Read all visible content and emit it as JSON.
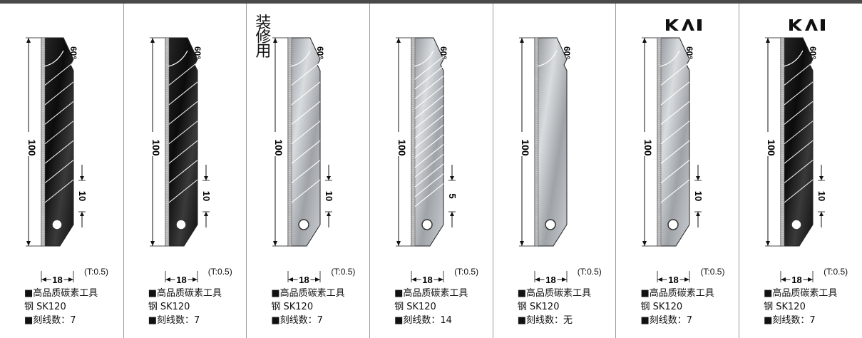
{
  "panels": [
    {
      "name": "black-7",
      "style": "black",
      "lines": 7,
      "interval": "10",
      "tag": "",
      "logo": false,
      "desc1": "■高品质碳素工具",
      "desc2": "钢 SK120",
      "desc3": "■刻线数：7"
    },
    {
      "name": "black-7b",
      "style": "black",
      "lines": 7,
      "interval": "10",
      "tag": "",
      "logo": false,
      "desc1": "■高品质碳素工具",
      "desc2": "钢 SK120",
      "desc3": "■刻线数：7"
    },
    {
      "name": "silver-deco",
      "style": "silver",
      "lines": 7,
      "interval": "10",
      "tag": "装修用",
      "logo": false,
      "desc1": "■高品质碳素工具",
      "desc2": "钢 SK120",
      "desc3": "■刻线数：7"
    },
    {
      "name": "silver-14",
      "style": "silver",
      "lines": 14,
      "interval": "5",
      "tag": "",
      "logo": false,
      "desc1": "■高品质碳素工具",
      "desc2": "钢 SK120",
      "desc3": "■刻线数：14"
    },
    {
      "name": "silver-0",
      "style": "silver",
      "lines": 0,
      "interval": "",
      "tag": "",
      "logo": false,
      "desc1": "■高品质碳素工具",
      "desc2": "钢 SK120",
      "desc3": "■刻线数：无"
    },
    {
      "name": "silver-kai",
      "style": "silver",
      "lines": 7,
      "interval": "10",
      "tag": "",
      "logo": true,
      "desc1": "■高品质碳素工具",
      "desc2": "钢 SK120",
      "desc3": "■刻线数：7"
    },
    {
      "name": "black-kai",
      "style": "black",
      "lines": 7,
      "interval": "10",
      "tag": "",
      "logo": true,
      "desc1": "■高品质碳素工具",
      "desc2": "钢 SK120",
      "desc3": "■刻线数：7"
    }
  ],
  "labels": {
    "angle": "60°",
    "length": "100",
    "width": "18",
    "thickness": "(T:0.5)",
    "logo_text": "KAI"
  },
  "colors": {
    "black_blade": "#1a1a1a",
    "silver_blade": "#b9bcc0",
    "divider": "#9a9a9a",
    "topbar": "#4a4a4a"
  }
}
